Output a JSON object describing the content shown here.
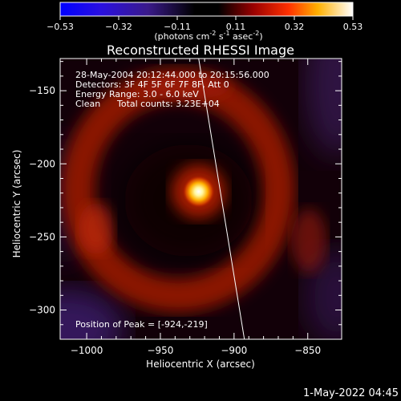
{
  "chart_data": {
    "type": "heatmap",
    "title": "Reconstructed RHESSI Image",
    "xlabel": "Heliocentric X (arcsec)",
    "ylabel": "Heliocentric Y (arcsec)",
    "xlim": [
      -1018,
      -827
    ],
    "ylim": [
      -320,
      -128
    ],
    "xticks": [
      -1000,
      -950,
      -900,
      -850
    ],
    "yticks": [
      -300,
      -250,
      -200,
      -150
    ],
    "colorbar": {
      "min": -0.53,
      "max": 0.53,
      "ticks": [
        "-0.53",
        "-0.32",
        "-0.11",
        "0.11",
        "0.32",
        "0.53"
      ],
      "units_prefix": "(photons cm",
      "units_exp1": "-2",
      "units_mid1": " s",
      "units_exp2": "-1",
      "units_mid2": " asec",
      "units_exp3": "-2",
      "units_suffix": ")",
      "colormap": "RHESSI red-temperature (blue-purple for negatives, black-red-yellow-white for positives)"
    },
    "info_lines": [
      "28-May-2004 20:12:44.000 to 20:15:56.000",
      "Detectors: 3F 4F 5F 6F 7F 8F, Att 0",
      "Energy Range: 3.0 - 6.0 keV"
    ],
    "clean_label": "Clean",
    "total_counts_label": "Total counts: 3.23E+04",
    "peak_label": "Position of Peak = [-924,-219]",
    "peak": {
      "x": -924,
      "y": -219,
      "value": 0.53
    },
    "ring": {
      "center_x": -938,
      "center_y": -218,
      "radius_x": 68,
      "radius_y": 72,
      "value": 0.15
    },
    "limb_line": {
      "x_start": -924,
      "y_start": -128,
      "x_end": -893,
      "y_end": -320
    }
  },
  "timestamp": "1-May-2022 04:45"
}
